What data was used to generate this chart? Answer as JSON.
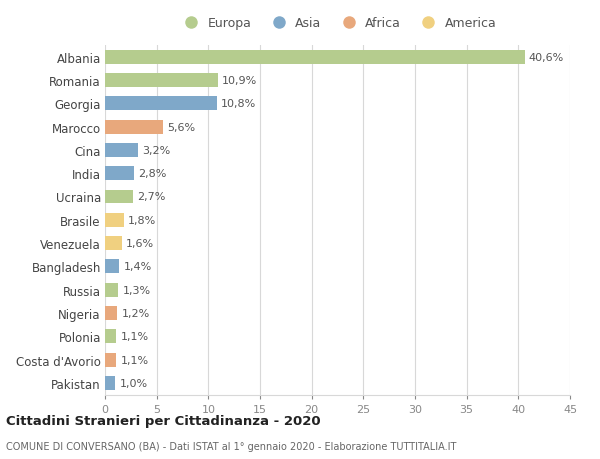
{
  "countries": [
    "Albania",
    "Romania",
    "Georgia",
    "Marocco",
    "Cina",
    "India",
    "Ucraina",
    "Brasile",
    "Venezuela",
    "Bangladesh",
    "Russia",
    "Nigeria",
    "Polonia",
    "Costa d'Avorio",
    "Pakistan"
  ],
  "values": [
    40.6,
    10.9,
    10.8,
    5.6,
    3.2,
    2.8,
    2.7,
    1.8,
    1.6,
    1.4,
    1.3,
    1.2,
    1.1,
    1.1,
    1.0
  ],
  "labels": [
    "40,6%",
    "10,9%",
    "10,8%",
    "5,6%",
    "3,2%",
    "2,8%",
    "2,7%",
    "1,8%",
    "1,6%",
    "1,4%",
    "1,3%",
    "1,2%",
    "1,1%",
    "1,1%",
    "1,0%"
  ],
  "continents": [
    "Europa",
    "Europa",
    "Asia",
    "Africa",
    "Asia",
    "Asia",
    "Europa",
    "America",
    "America",
    "Asia",
    "Europa",
    "Africa",
    "Europa",
    "Africa",
    "Asia"
  ],
  "colors": {
    "Europa": "#b5cc8e",
    "Asia": "#7fa8c9",
    "Africa": "#e8a87c",
    "America": "#f0d080"
  },
  "legend_order": [
    "Europa",
    "Asia",
    "Africa",
    "America"
  ],
  "xlim": [
    0,
    45
  ],
  "xticks": [
    0,
    5,
    10,
    15,
    20,
    25,
    30,
    35,
    40,
    45
  ],
  "title1": "Cittadini Stranieri per Cittadinanza - 2020",
  "title2": "COMUNE DI CONVERSANO (BA) - Dati ISTAT al 1° gennaio 2020 - Elaborazione TUTTITALIA.IT",
  "background_color": "#ffffff",
  "grid_color": "#d8d8d8",
  "bar_height": 0.6,
  "label_fontsize": 8.0,
  "ytick_fontsize": 8.5,
  "xtick_fontsize": 8.0
}
